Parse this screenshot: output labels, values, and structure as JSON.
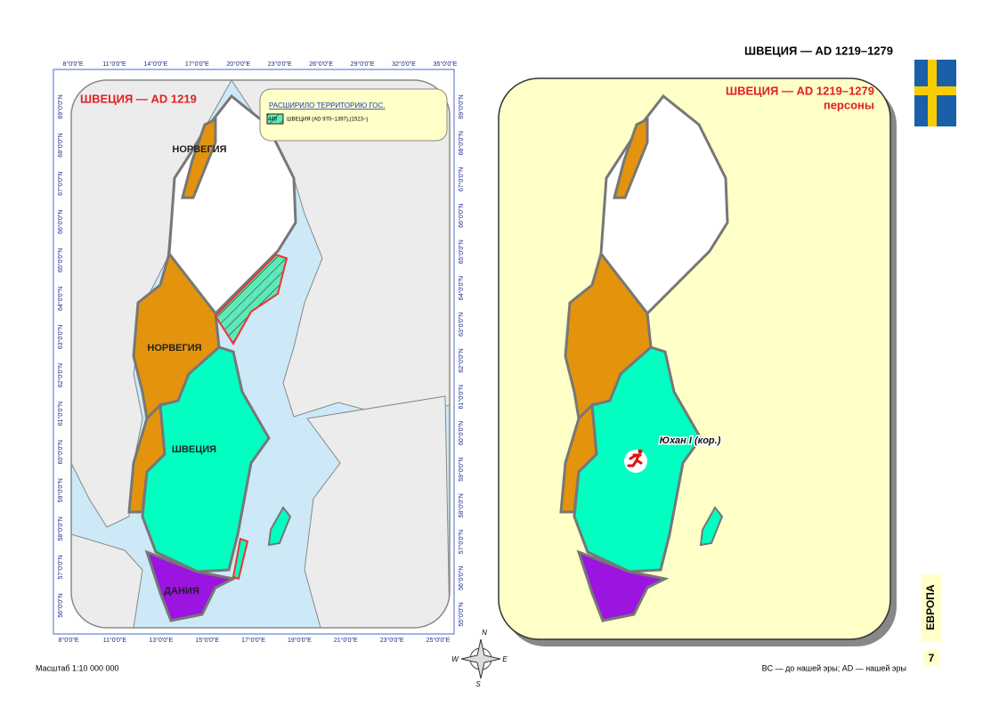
{
  "header": {
    "title": "ШВЕЦИЯ — AD 1219–1279"
  },
  "left_map": {
    "title": "ШВЕЦИЯ — AD 1219",
    "legend": {
      "title": "РАСШИРИЛО ТЕРРИТОРИЮ ГОС.",
      "code": "449",
      "label": "ШВЕЦИЯ  (AD 970–1397),(1523–)"
    },
    "labels": [
      "НОРВЕГИЯ",
      "НОРВЕГИЯ",
      "ШВЕЦИЯ",
      "ДАНИЯ"
    ],
    "top_ticks": [
      "8°0'0\"E",
      "11°0'0\"E",
      "14°0'0\"E",
      "17°0'0\"E",
      "20°0'0\"E",
      "23°0'0\"E",
      "26°0'0\"E",
      "29°0'0\"E",
      "32°0'0\"E",
      "35°0'0\"E"
    ],
    "bottom_ticks": [
      "8°0'0\"E",
      "11°0'0\"E",
      "13°0'0\"E",
      "15°0'0\"E",
      "17°0'0\"E",
      "19°0'0\"E",
      "21°0'0\"E",
      "23°0'0\"E",
      "25°0'0\"E"
    ],
    "left_ticks": [
      "69°0'0\"N",
      "68°0'0\"N",
      "67°0'0\"N",
      "66°0'0\"N",
      "65°0'0\"N",
      "64°0'0\"N",
      "63°0'0\"N",
      "62°0'0\"N",
      "61°0'0\"N",
      "60°0'0\"N",
      "59°0'0\"N",
      "58°0'0\"N",
      "57°0'0\"N",
      "56°0'0\"N"
    ],
    "right_ticks": [
      "69°0'0\"N",
      "68°0'0\"N",
      "67°0'0\"N",
      "66°0'0\"N",
      "65°0'0\"N",
      "64°0'0\"N",
      "63°0'0\"N",
      "62°0'0\"N",
      "61°0'0\"N",
      "60°0'0\"N",
      "59°0'0\"N",
      "58°0'0\"N",
      "57°0'0\"N",
      "56°0'0\"N",
      "55°0'0\"N"
    ]
  },
  "right_map": {
    "title": "ШВЕЦИЯ —  AD 1219–1279",
    "subtitle": "персоны",
    "person": "Юхан I (кор.)"
  },
  "compass": [
    "N",
    "E",
    "S",
    "W"
  ],
  "footer": {
    "scale": "Масштаб 1:10 000 000",
    "note": "BC — до нашей эры; AD — нашей эры"
  },
  "side_tab": {
    "label": "ЕВРОПА",
    "page": "7"
  }
}
